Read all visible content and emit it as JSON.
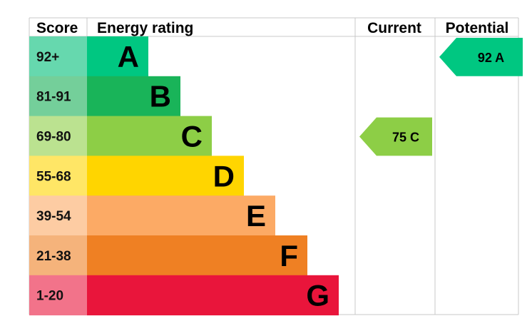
{
  "chart_data": {
    "type": "bar",
    "headers": {
      "score": "Score",
      "rating": "Energy rating",
      "current": "Current",
      "potential": "Potential"
    },
    "bands": [
      {
        "score": "92+",
        "letter": "A",
        "color": "#00c781",
        "score_bg": "#66d8ae"
      },
      {
        "score": "81-91",
        "letter": "B",
        "color": "#19b459",
        "score_bg": "#74cf9a"
      },
      {
        "score": "69-80",
        "letter": "C",
        "color": "#8dce46",
        "score_bg": "#bbe290"
      },
      {
        "score": "55-68",
        "letter": "D",
        "color": "#ffd500",
        "score_bg": "#ffe666"
      },
      {
        "score": "39-54",
        "letter": "E",
        "color": "#fcaa65",
        "score_bg": "#fdcca3"
      },
      {
        "score": "21-38",
        "letter": "F",
        "color": "#ef8023",
        "score_bg": "#f5b37b"
      },
      {
        "score": "1-20",
        "letter": "G",
        "color": "#e9153b",
        "score_bg": "#f2738a"
      }
    ],
    "current": {
      "value": 75,
      "letter": "C",
      "label": "75  C",
      "color": "#8dce46"
    },
    "potential": {
      "value": 92,
      "letter": "A",
      "label": "92  A",
      "color": "#00c781"
    }
  }
}
